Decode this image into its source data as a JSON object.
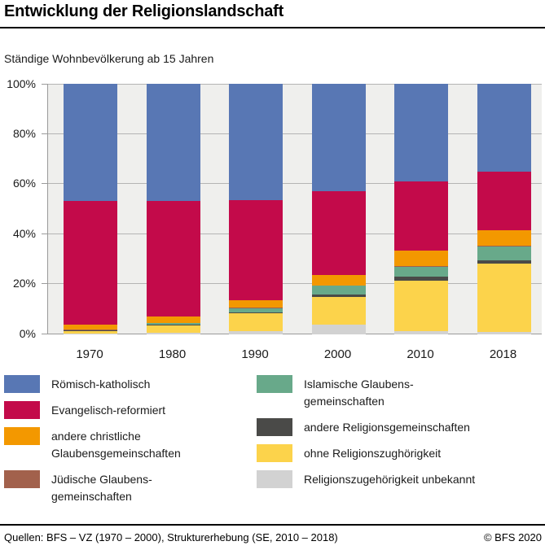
{
  "header": {
    "title": "Entwicklung der Religionslandschaft"
  },
  "chart_data": {
    "type": "bar",
    "stacked": true,
    "subtitle": "Ständige Wohnbevölkerung ab 15 Jahren",
    "unit": "%",
    "grid": true,
    "legend_position": "bottom",
    "ylim": [
      0,
      100
    ],
    "y_gridlines": [
      0,
      20,
      40,
      60,
      80,
      100
    ],
    "yticks": [
      "0%",
      "20%",
      "40%",
      "60%",
      "80%",
      "100%"
    ],
    "categories": [
      "1970",
      "1980",
      "1990",
      "2000",
      "2010",
      "2018"
    ],
    "series": [
      {
        "name": "Römisch-katholisch",
        "color": "#5877B4",
        "values": [
          46.8,
          46.6,
          46.5,
          42.9,
          38.8,
          35.0
        ]
      },
      {
        "name": "Evangelisch-reformiert",
        "color": "#C30A4A",
        "values": [
          49.2,
          46.1,
          40.0,
          33.5,
          27.9,
          23.6
        ]
      },
      {
        "name": "andere christliche Glaubensgemeinschaften",
        "color": "#F39800",
        "values": [
          2.0,
          2.6,
          2.9,
          4.0,
          6.0,
          6.0
        ]
      },
      {
        "name": "Jüdische Glaubensgemeinschaften",
        "color": "#A2614C",
        "values": [
          0.3,
          0.3,
          0.3,
          0.2,
          0.2,
          0.2
        ]
      },
      {
        "name": "Islamische Glaubensgemeinschaften",
        "color": "#68A98A",
        "values": [
          0.2,
          0.5,
          1.6,
          3.5,
          4.2,
          5.6
        ]
      },
      {
        "name": "andere Religionsgemeinschaften",
        "color": "#4A4A48",
        "values": [
          0.1,
          0.2,
          0.4,
          0.9,
          1.4,
          1.5
        ]
      },
      {
        "name": "ohne Religionszughörigkeit",
        "color": "#FCD34B",
        "values": [
          1.1,
          3.0,
          7.0,
          11.2,
          20.1,
          27.3
        ]
      },
      {
        "name": "Religionszugehörigkeit unbekannt",
        "color": "#D2D2D2",
        "values": [
          0.3,
          0.7,
          1.3,
          3.8,
          1.4,
          0.8
        ]
      }
    ]
  },
  "legend": {
    "columns": [
      [
        {
          "series": 0,
          "lines": [
            "Römisch-katholisch"
          ]
        },
        {
          "series": 1,
          "lines": [
            "Evangelisch-reformiert"
          ]
        },
        {
          "series": 2,
          "lines": [
            "andere christliche",
            "Glaubensgemeinschaften"
          ]
        },
        {
          "series": 3,
          "lines": [
            "Jüdische Glaubens-",
            "gemeinschaften"
          ]
        }
      ],
      [
        {
          "series": 4,
          "lines": [
            "Islamische Glaubens-",
            "gemeinschaften"
          ]
        },
        {
          "series": 5,
          "lines": [
            "andere Religionsgemeinschaften"
          ]
        },
        {
          "series": 6,
          "lines": [
            "ohne Religionszughörigkeit"
          ]
        },
        {
          "series": 7,
          "lines": [
            "Religionszugehörigkeit unbekannt"
          ]
        }
      ]
    ]
  },
  "colors": {
    "plot_background": "#efefed",
    "gridline": "#b4b4b4",
    "axis_line": "#9a9a9a",
    "rule": "#000000"
  },
  "footer": {
    "sources": "Quellen: BFS – VZ (1970 – 2000), Strukturerhebung (SE, 2010 – 2018)",
    "copyright": "© BFS 2020"
  }
}
